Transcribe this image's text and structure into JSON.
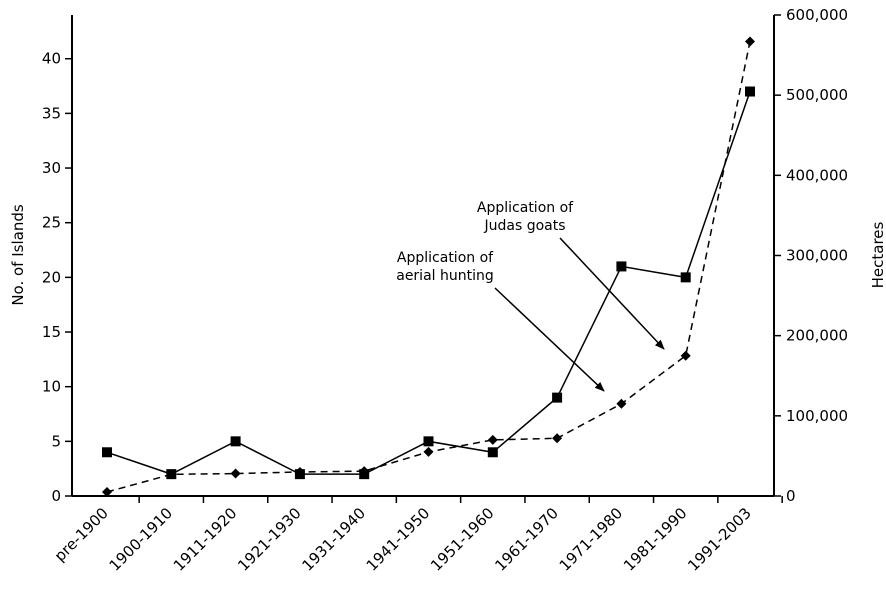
{
  "chart_data": {
    "type": "line",
    "categories": [
      "pre-1900",
      "1900-1910",
      "1911-1920",
      "1921-1930",
      "1931-1940",
      "1941-1950",
      "1951-1960",
      "1961-1970",
      "1971-1980",
      "1981-1990",
      "1991-2003"
    ],
    "ylabel": "No. of Islands",
    "y2label": "Hectares",
    "ylim": [
      0,
      44
    ],
    "y2lim": [
      0,
      600000
    ],
    "yticks": [
      0,
      5,
      10,
      15,
      20,
      25,
      30,
      35,
      40
    ],
    "y2ticks": [
      0,
      100000,
      200000,
      300000,
      400000,
      500000,
      600000
    ],
    "ytick_labels": [
      "0",
      "5",
      "10",
      "15",
      "20",
      "25",
      "30",
      "35",
      "40"
    ],
    "y2tick_labels": [
      "0",
      "100,000",
      "200,000",
      "300,000",
      "400,000",
      "500,000",
      "600,000"
    ],
    "series": [
      {
        "axis": "left",
        "line_style": "solid",
        "marker": "square",
        "values": [
          4,
          2,
          5,
          2,
          2,
          5,
          4,
          9,
          21,
          20,
          37
        ]
      },
      {
        "axis": "right",
        "line_style": "dashed",
        "marker": "diamond",
        "values": [
          5000,
          27000,
          28000,
          30000,
          31000,
          55000,
          70000,
          72000,
          115000,
          175000,
          567000
        ]
      }
    ],
    "annotations": [
      {
        "lines": [
          "Application of",
          "aerial hunting"
        ],
        "points_to_category": "1971-1980",
        "points_to_value": 100000
      },
      {
        "lines": [
          "Application of",
          "Judas goats"
        ],
        "points_to_category": "1981-1990",
        "points_to_value": 185000
      }
    ],
    "grid": false,
    "legend": "none"
  }
}
